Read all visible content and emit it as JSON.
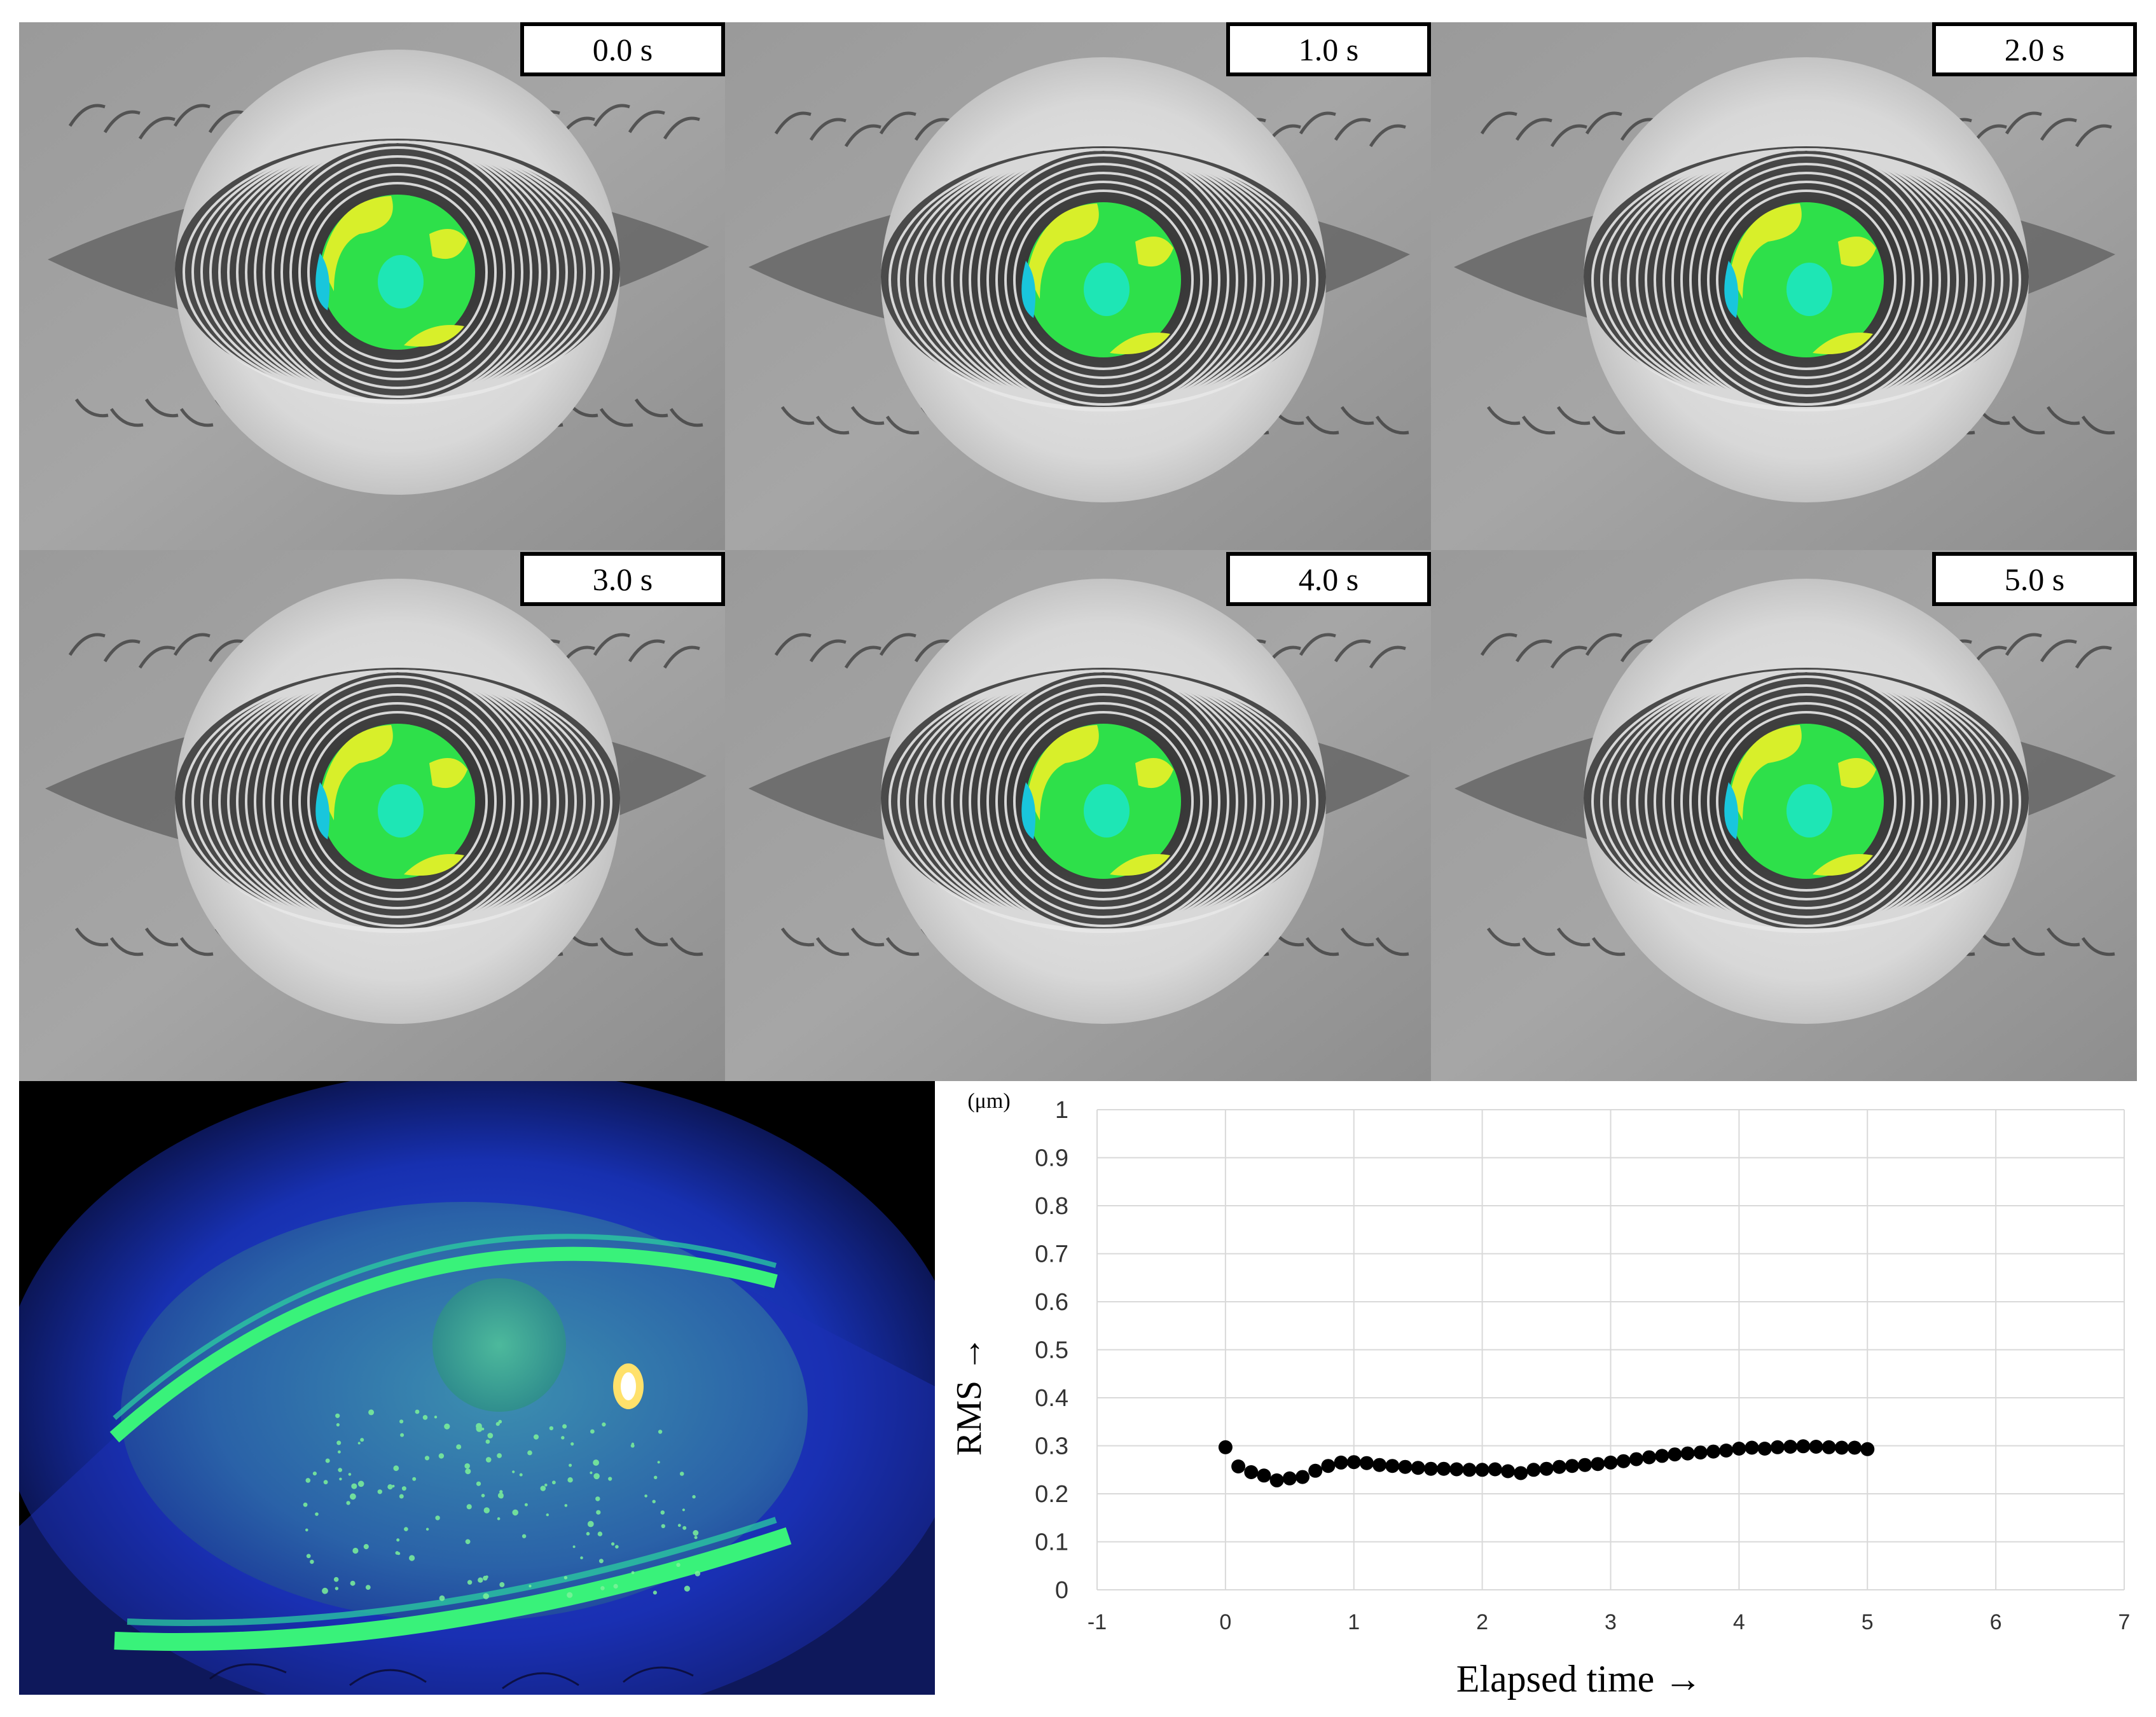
{
  "figure": {
    "panels": [
      {
        "time_label": "0.0 s"
      },
      {
        "time_label": "1.0 s"
      },
      {
        "time_label": "2.0 s"
      },
      {
        "time_label": "3.0 s"
      },
      {
        "time_label": "4.0 s"
      },
      {
        "time_label": "5.0 s"
      }
    ]
  },
  "colors": {
    "map_green": "#2ee04a",
    "map_yellow": "#d8ef2a",
    "map_cyan": "#1ee6b5",
    "map_blue": "#19c6dc",
    "fluorescein_blue": "#1f3fd8",
    "fluorescein_green": "#39f27a"
  },
  "chart_data": {
    "type": "scatter",
    "unit_label": "(μm)",
    "ylabel": "RMS →",
    "xlabel": "Elapsed time →",
    "xlim": [
      -1,
      7
    ],
    "ylim": [
      0,
      1
    ],
    "x_ticks": [
      "-1",
      "0",
      "1",
      "2",
      "3",
      "4",
      "5",
      "6",
      "7"
    ],
    "y_ticks": [
      "0",
      "0.1",
      "0.2",
      "0.3",
      "0.4",
      "0.5",
      "0.6",
      "0.7",
      "0.8",
      "0.9",
      "1"
    ],
    "grid": true,
    "x": [
      0.0,
      0.1,
      0.2,
      0.3,
      0.4,
      0.5,
      0.6,
      0.7,
      0.8,
      0.9,
      1.0,
      1.1,
      1.2,
      1.3,
      1.4,
      1.5,
      1.6,
      1.7,
      1.8,
      1.9,
      2.0,
      2.1,
      2.2,
      2.3,
      2.4,
      2.5,
      2.6,
      2.7,
      2.8,
      2.9,
      3.0,
      3.1,
      3.2,
      3.3,
      3.4,
      3.5,
      3.6,
      3.7,
      3.8,
      3.9,
      4.0,
      4.1,
      4.2,
      4.3,
      4.4,
      4.5,
      4.6,
      4.7,
      4.8,
      4.9,
      5.0
    ],
    "y": [
      0.297,
      0.257,
      0.245,
      0.238,
      0.228,
      0.232,
      0.235,
      0.248,
      0.258,
      0.265,
      0.266,
      0.264,
      0.26,
      0.258,
      0.256,
      0.254,
      0.252,
      0.252,
      0.251,
      0.25,
      0.25,
      0.251,
      0.247,
      0.243,
      0.25,
      0.252,
      0.256,
      0.258,
      0.26,
      0.262,
      0.265,
      0.268,
      0.272,
      0.276,
      0.279,
      0.282,
      0.284,
      0.286,
      0.288,
      0.29,
      0.294,
      0.296,
      0.294,
      0.297,
      0.298,
      0.299,
      0.298,
      0.297,
      0.296,
      0.296,
      0.293
    ]
  }
}
